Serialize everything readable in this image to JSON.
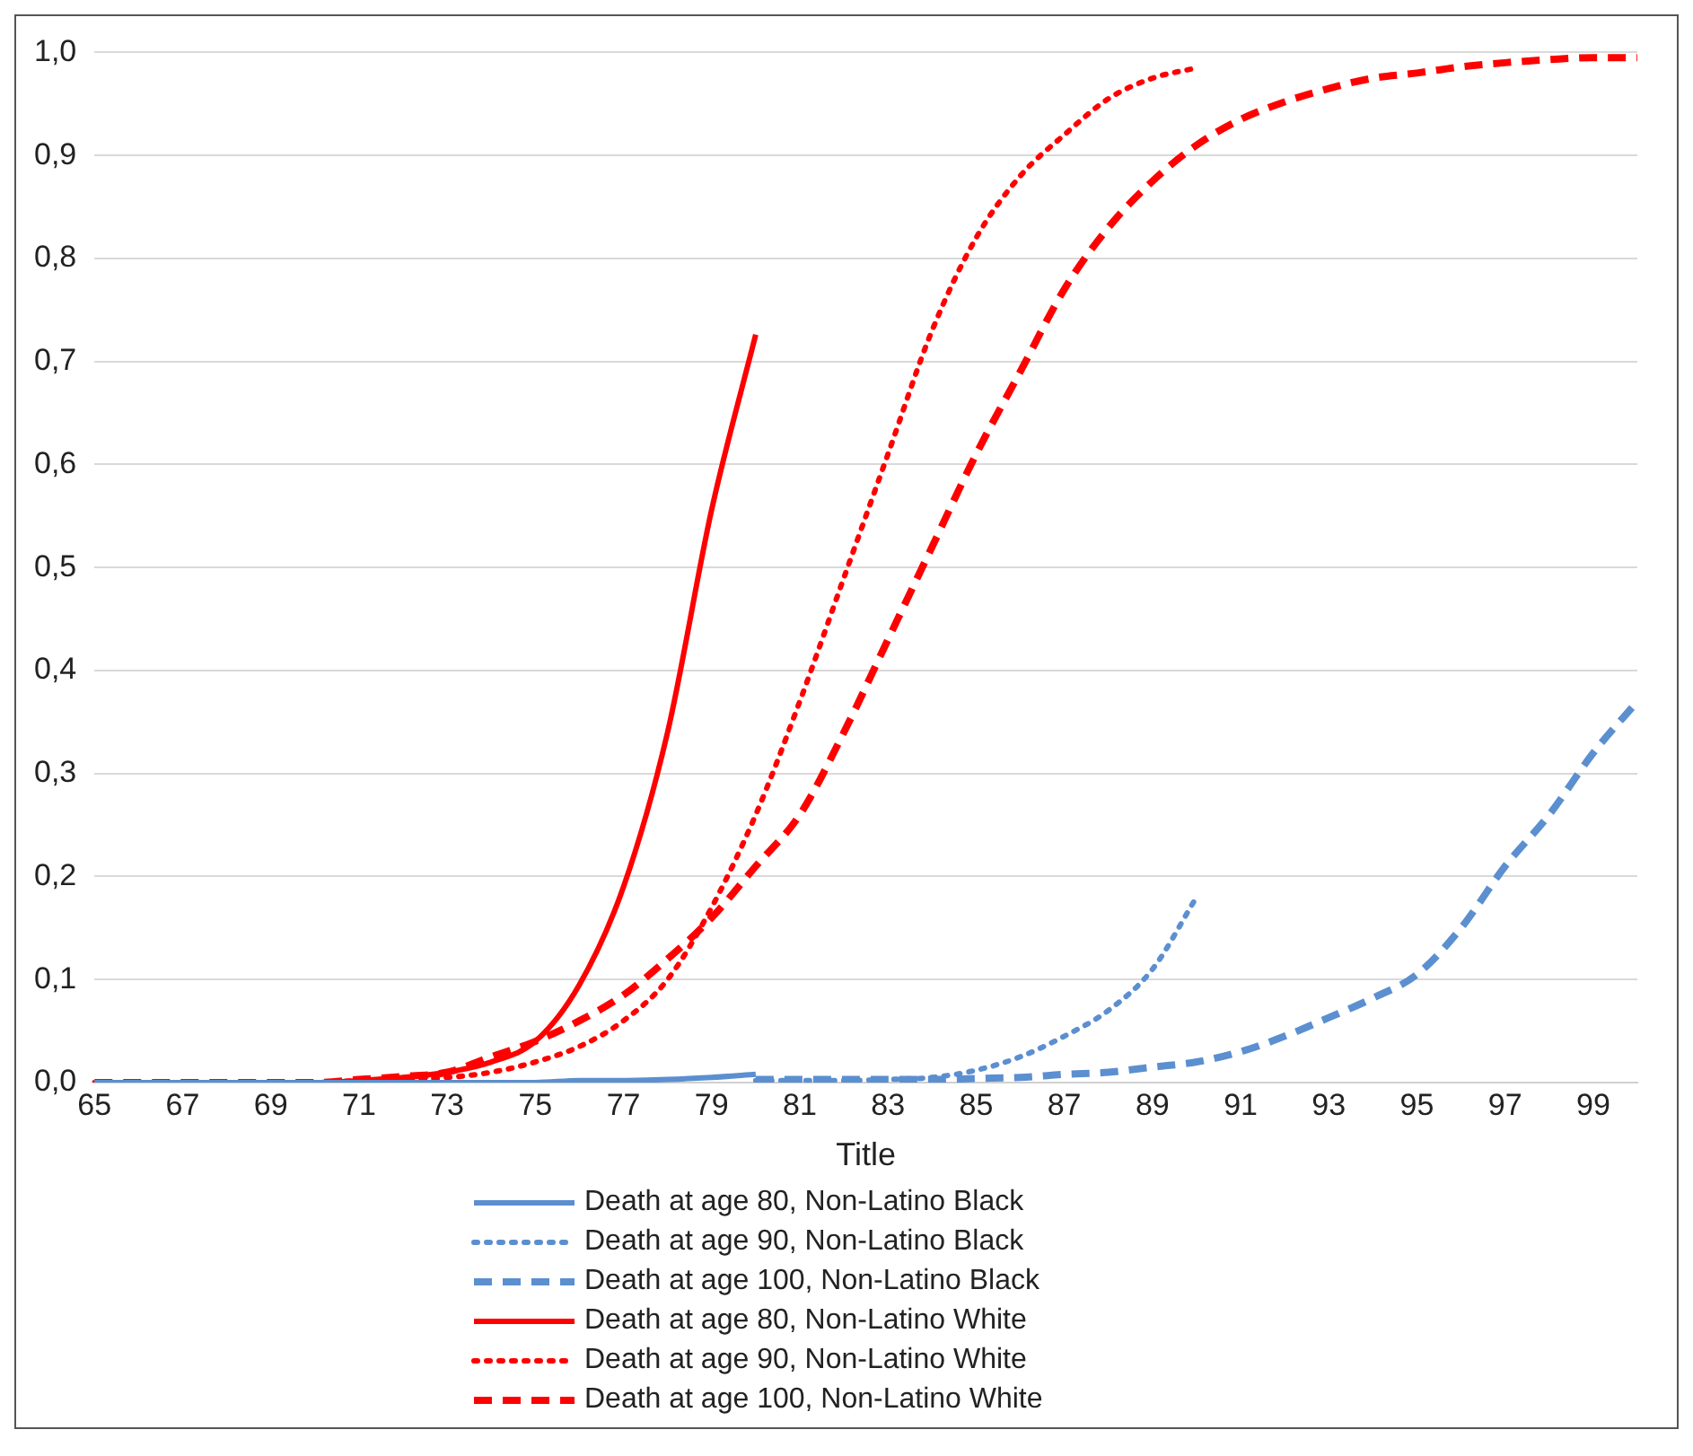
{
  "chart_data": {
    "type": "line",
    "xlabel": "Title",
    "categories": [
      "65",
      null,
      "67",
      null,
      "69",
      null,
      "71",
      null,
      "73",
      null,
      "75",
      null,
      "77",
      null,
      "79",
      null,
      "81",
      null,
      "83",
      null,
      "85",
      null,
      "87",
      null,
      "89",
      null,
      "91",
      null,
      "93",
      null,
      "95",
      null,
      "97",
      null,
      "99",
      null
    ],
    "ylim": [
      0,
      1
    ],
    "yticks": [
      {
        "value": 0,
        "label": "0,0"
      },
      {
        "value": 0.1,
        "label": "0,1"
      },
      {
        "value": 0.2,
        "label": "0,2"
      },
      {
        "value": 0.3,
        "label": "0,3"
      },
      {
        "value": 0.4,
        "label": "0,4"
      },
      {
        "value": 0.5,
        "label": "0,5"
      },
      {
        "value": 0.6,
        "label": "0,6"
      },
      {
        "value": 0.7,
        "label": "0,7"
      },
      {
        "value": 0.8,
        "label": "0,8"
      },
      {
        "value": 0.9,
        "label": "0,9"
      },
      {
        "value": 1,
        "label": "1,0"
      }
    ],
    "grid": "y",
    "legend": "bottom",
    "marker": "none",
    "series": [
      {
        "name": "Death at age 80, Non-Latino Black",
        "color": "#5b8fd0",
        "line_style": "solid",
        "values": [
          0,
          0,
          0,
          0,
          0,
          0,
          0,
          0,
          0,
          0,
          0,
          0.002,
          0.002,
          0.003,
          0.005,
          0.008,
          null,
          null,
          null,
          null,
          null,
          null,
          null,
          null,
          null,
          null,
          null,
          null,
          null,
          null,
          null,
          null,
          null,
          null,
          null,
          null
        ]
      },
      {
        "name": "Death at age 90, Non-Latino Black",
        "color": "#5b8fd0",
        "line_style": "dotted",
        "values": [
          null,
          null,
          null,
          null,
          null,
          null,
          null,
          null,
          null,
          null,
          null,
          null,
          null,
          null,
          null,
          0.002,
          0.002,
          0.002,
          0.003,
          0.005,
          0.012,
          0.025,
          0.045,
          0.07,
          0.11,
          0.18,
          null,
          null,
          null,
          null,
          null,
          null,
          null,
          null,
          null,
          null
        ]
      },
      {
        "name": "Death at age 100, Non-Latino Black",
        "color": "#5b8fd0",
        "line_style": "dashed",
        "values": [
          null,
          null,
          null,
          null,
          null,
          null,
          null,
          null,
          null,
          null,
          null,
          null,
          null,
          null,
          null,
          0.003,
          0.003,
          0.003,
          0.003,
          0.003,
          0.004,
          0.005,
          0.008,
          0.01,
          0.015,
          0.02,
          0.03,
          0.045,
          0.063,
          0.082,
          0.105,
          0.15,
          0.21,
          0.26,
          0.32,
          0.37
        ]
      },
      {
        "name": "Death at age 80, Non-Latino White",
        "color": "#ff0000",
        "line_style": "solid",
        "values": [
          0,
          0,
          0,
          0,
          0,
          0,
          0.002,
          0.005,
          0.01,
          0.02,
          0.04,
          0.095,
          0.19,
          0.34,
          0.556,
          0.726,
          null,
          null,
          null,
          null,
          null,
          null,
          null,
          null,
          null,
          null,
          null,
          null,
          null,
          null,
          null,
          null,
          null,
          null,
          null,
          null
        ]
      },
      {
        "name": "Death at age 90, Non-Latino White",
        "color": "#ff0000",
        "line_style": "dotted",
        "values": [
          0,
          0,
          0,
          0,
          0,
          0,
          0.002,
          0.003,
          0.005,
          0.01,
          0.02,
          0.035,
          0.06,
          0.1,
          0.17,
          0.26,
          0.37,
          0.49,
          0.61,
          0.73,
          0.82,
          0.88,
          0.92,
          0.955,
          0.975,
          0.985,
          null,
          null,
          null,
          null,
          null,
          null,
          null,
          null,
          null,
          null
        ]
      },
      {
        "name": "Death at age 100, Non-Latino White",
        "color": "#ff0000",
        "line_style": "dashed",
        "values": [
          0,
          0,
          0,
          0,
          0,
          0,
          0.003,
          0.006,
          0.01,
          0.025,
          0.04,
          0.06,
          0.085,
          0.12,
          0.16,
          0.21,
          0.26,
          0.34,
          0.43,
          0.52,
          0.61,
          0.69,
          0.77,
          0.83,
          0.875,
          0.91,
          0.935,
          0.952,
          0.965,
          0.975,
          0.98,
          0.986,
          0.99,
          0.993,
          0.995,
          0.995
        ]
      }
    ]
  }
}
